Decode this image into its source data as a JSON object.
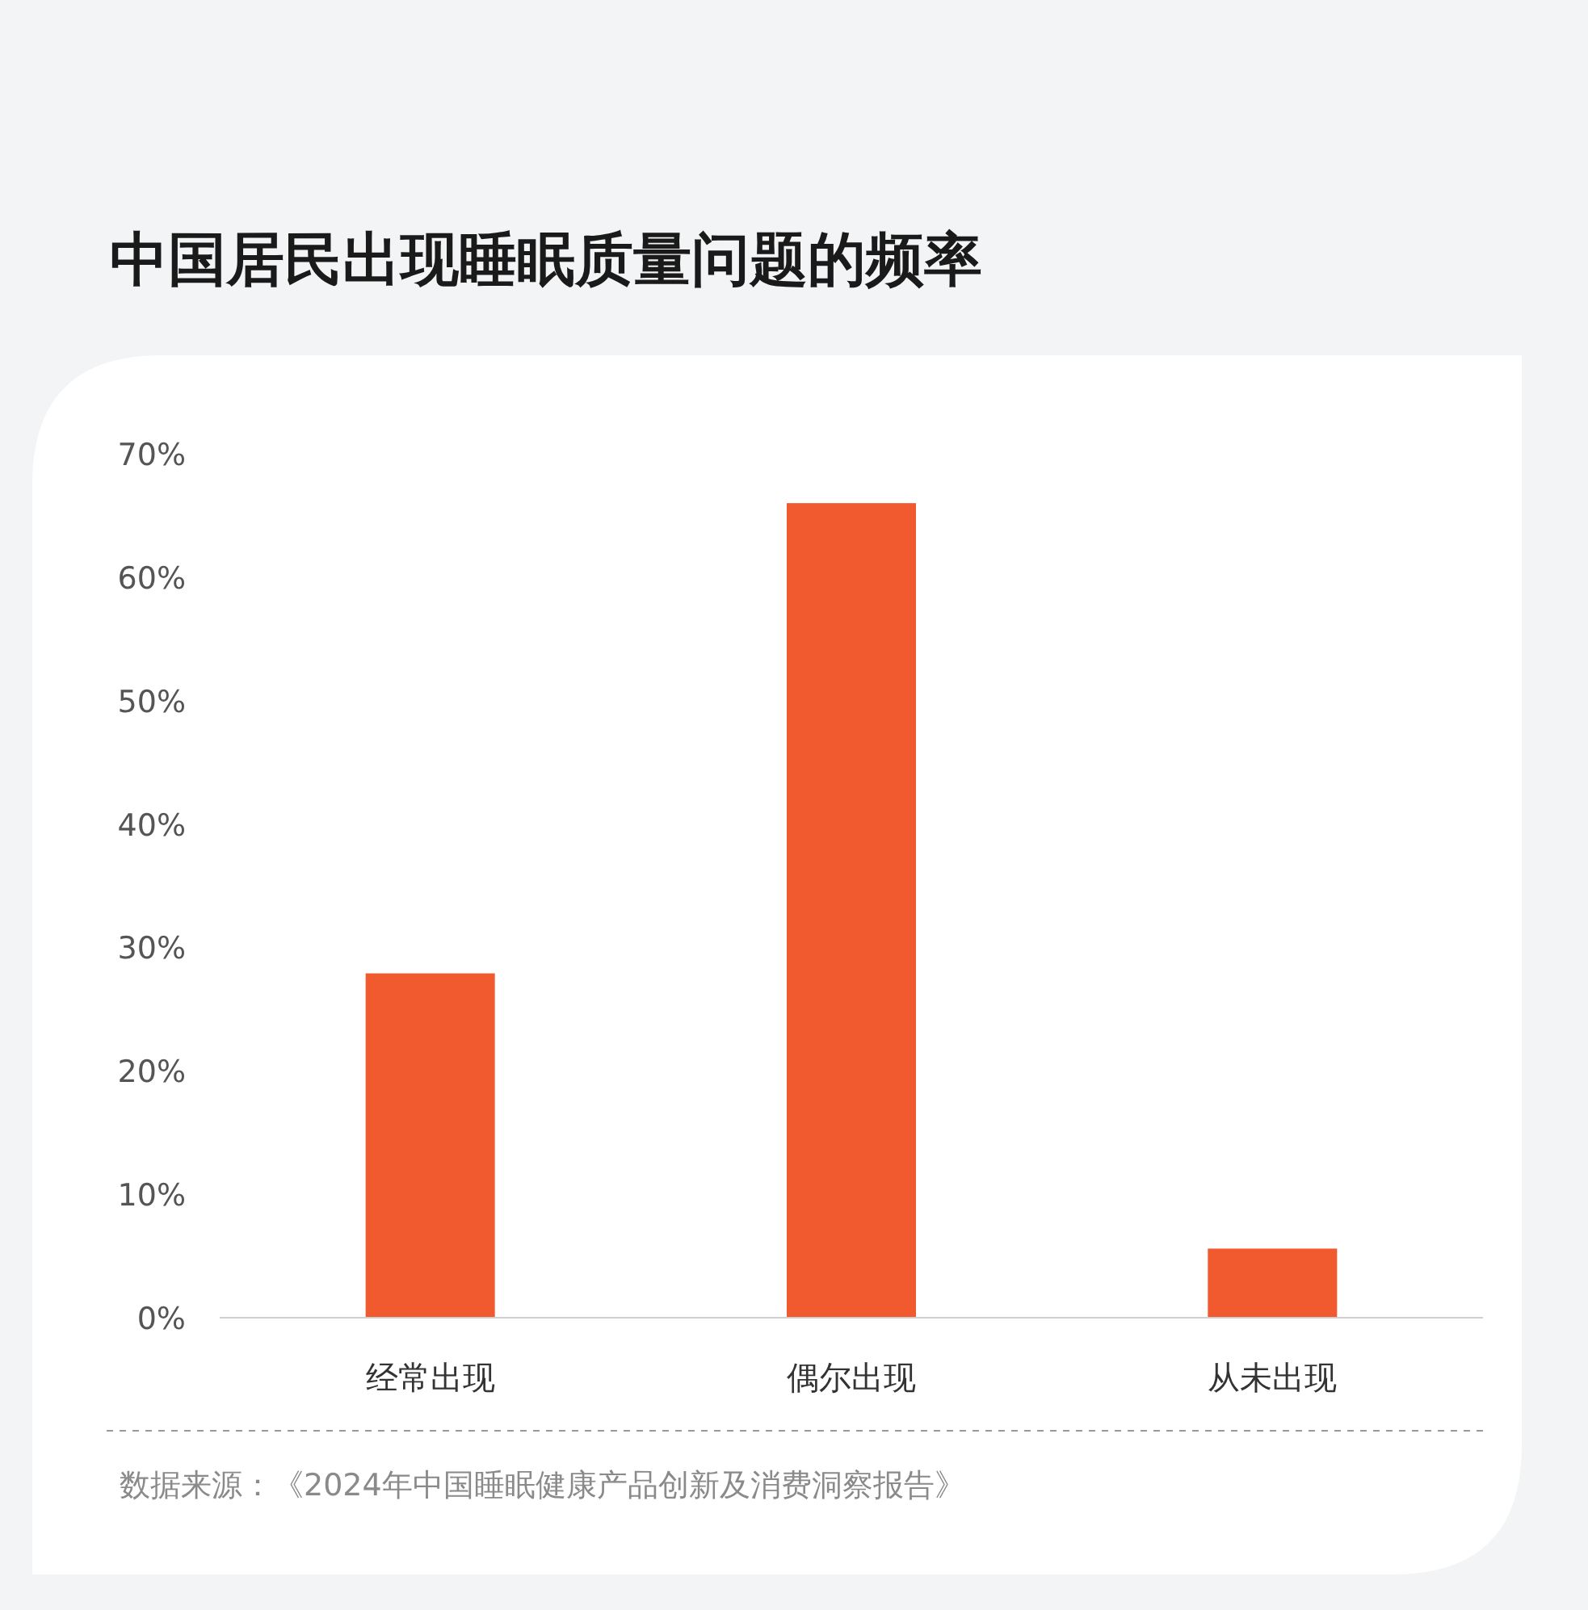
{
  "chart_data": {
    "type": "bar",
    "title": "中国居民出现睡眠质量问题的频率",
    "categories": [
      "经常出现",
      "偶尔出现",
      "从未出现"
    ],
    "values": [
      27.9,
      66.0,
      5.6
    ],
    "color": "#f05a2e",
    "ylim": [
      0,
      70
    ],
    "yticks": [
      {
        "value": 0,
        "label": "0%"
      },
      {
        "value": 10,
        "label": "10%"
      },
      {
        "value": 20,
        "label": "20%"
      },
      {
        "value": 30,
        "label": "30%"
      },
      {
        "value": 40,
        "label": "40%"
      },
      {
        "value": 50,
        "label": "50%"
      },
      {
        "value": 60,
        "label": "60%"
      },
      {
        "value": 70,
        "label": "70%"
      }
    ],
    "annotations": [
      "数据来源：《2024年中国睡眠健康产品创新及消费洞察报告》"
    ]
  }
}
